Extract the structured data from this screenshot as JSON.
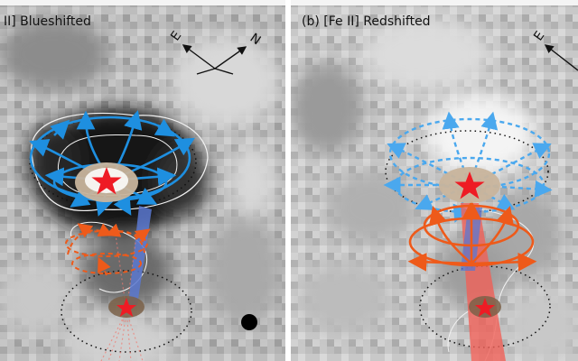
{
  "panels": [
    {
      "label": "II] Blueshifted",
      "compass": {
        "e": "E",
        "n": "N"
      }
    },
    {
      "label": "(b) [Fe II] Redshifted",
      "compass": {
        "e": "E"
      }
    }
  ],
  "colors": {
    "blue": "#1e8fe0",
    "light_blue": "#4aa8ee",
    "orange": "#ee5a1a",
    "red_star": "#ee1b24",
    "red_jet": "#f06058",
    "blue_jet": "#5a78d0",
    "host_disk": "#c8b49c",
    "dark_disk": "#7a6048"
  },
  "icons": [
    "star-icon",
    "compass-rose-icon",
    "beam-marker-icon"
  ]
}
